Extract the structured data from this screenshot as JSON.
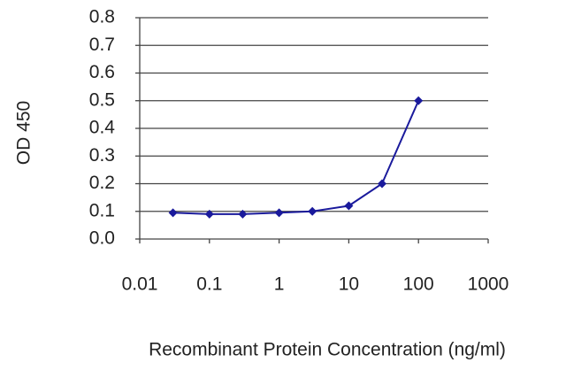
{
  "chart_data": {
    "type": "line",
    "xlabel": "Recombinant Protein Concentration (ng/ml)",
    "ylabel": "OD 450",
    "x": [
      0.03,
      0.1,
      0.3,
      1,
      3,
      10,
      30,
      100
    ],
    "series": [
      {
        "color": "#1a1a9c",
        "values": [
          0.095,
          0.09,
          0.09,
          0.095,
          0.1,
          0.12,
          0.2,
          0.5
        ]
      }
    ],
    "xlim": [
      0.01,
      1000
    ],
    "xticks": [
      0.01,
      0.1,
      1,
      10,
      100,
      1000
    ],
    "xscale": "log",
    "ylim": [
      0,
      0.8
    ],
    "yticks": [
      {
        "value": 0,
        "label": "0.0"
      },
      0.1,
      0.2,
      0.3,
      0.4,
      0.5,
      0.6,
      0.7,
      0.8
    ],
    "grid": true
  }
}
